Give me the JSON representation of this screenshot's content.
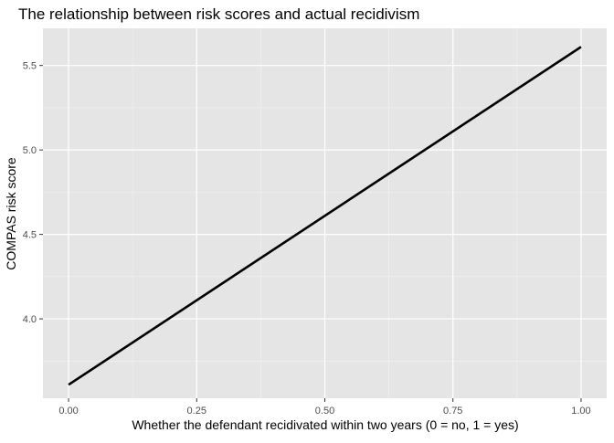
{
  "chart_data": {
    "type": "line",
    "title": "The relationship between risk scores and actual recidivism",
    "xlabel": "Whether the defendant recidivated within two years (0 = no, 1 = yes)",
    "ylabel": "COMPAS risk score",
    "xlim": [
      -0.05,
      1.05
    ],
    "ylim": [
      3.53,
      5.72
    ],
    "x_ticks": [
      0.0,
      0.25,
      0.5,
      0.75,
      1.0
    ],
    "x_tick_labels": [
      "0.00",
      "0.25",
      "0.50",
      "0.75",
      "1.00"
    ],
    "y_ticks": [
      4.0,
      4.5,
      5.0,
      5.5
    ],
    "y_tick_labels": [
      "4.0",
      "4.5",
      "5.0",
      "5.5"
    ],
    "grid": true,
    "legend": "none",
    "series": [
      {
        "x": [
          0.0,
          1.0
        ],
        "y": [
          3.61,
          5.61
        ]
      }
    ],
    "colors": {
      "panel_background": "#e5e5e5",
      "grid_major": "#ffffff",
      "grid_minor": "#f2f2f2",
      "line": "#000000",
      "tick_text": "#4d4d4d",
      "tick_mark": "#333333",
      "text": "#000000"
    }
  }
}
